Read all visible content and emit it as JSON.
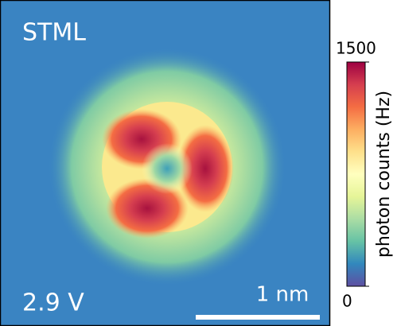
{
  "chart_data": {
    "type": "heatmap",
    "title": "STML",
    "annotations": [
      "2.9 V"
    ],
    "scale_bar": "1 nm",
    "colorbar_label": "photon counts (Hz)",
    "clim": [
      0,
      1500
    ],
    "cticks": [
      0,
      1500
    ],
    "colormap": [
      "#5e4fa2",
      "#3288bd",
      "#66c2a5",
      "#abdda4",
      "#e6f598",
      "#ffffbf",
      "#fee08b",
      "#fdae61",
      "#f46d43",
      "#d53e4f",
      "#9e0142"
    ]
  }
}
